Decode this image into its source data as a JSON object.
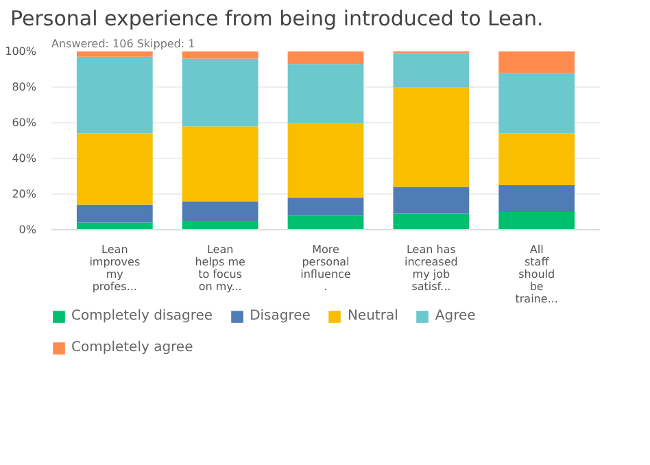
{
  "chart_data": {
    "type": "bar",
    "stacked": true,
    "title": "Personal experience from being introduced to Lean.",
    "subtitle": "Answered: 106    Skipped: 1",
    "categories": [
      "Lean improves my profes...",
      "Lean helps me to focus on my...",
      "More personal influence .",
      "Lean has increased my job satisf...",
      "All staff should be traine..."
    ],
    "series": [
      {
        "name": "Completely disagree",
        "color": "#00bf6f",
        "values": [
          4,
          5,
          8,
          9,
          10
        ]
      },
      {
        "name": "Disagree",
        "color": "#507cb6",
        "values": [
          10,
          11,
          10,
          15,
          15
        ]
      },
      {
        "name": "Neutral",
        "color": "#f9be00",
        "values": [
          40,
          42,
          42,
          56,
          29
        ]
      },
      {
        "name": "Agree",
        "color": "#6bc8cd",
        "values": [
          43,
          38,
          33,
          19,
          34
        ]
      },
      {
        "name": "Completely agree",
        "color": "#ff8b4f",
        "values": [
          3,
          4,
          7,
          1,
          12
        ]
      }
    ],
    "ylim": [
      0,
      100
    ],
    "yticks": [
      {
        "value": 0,
        "label": "0%"
      },
      {
        "value": 20,
        "label": "20%"
      },
      {
        "value": 40,
        "label": "40%"
      },
      {
        "value": 60,
        "label": "60%"
      },
      {
        "value": 80,
        "label": "80%"
      },
      {
        "value": 100,
        "label": "100%"
      }
    ],
    "grid": "y",
    "legend": "bottom"
  }
}
